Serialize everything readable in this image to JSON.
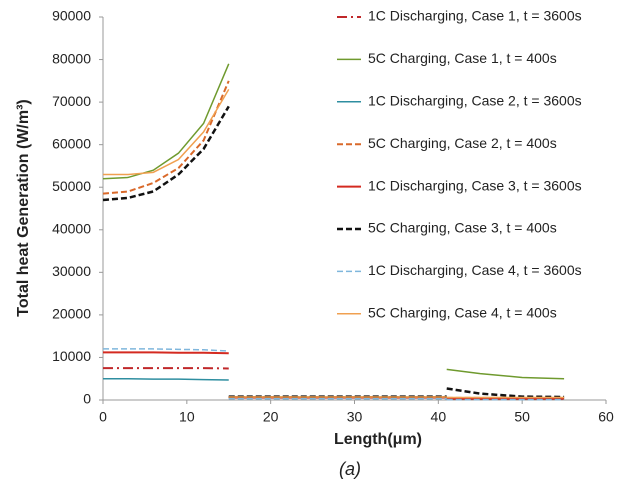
{
  "chart_data": {
    "type": "line",
    "x_label": "Length(μm)",
    "y_label": "Total heat Generation (W/m³)",
    "caption": "(a)",
    "x": [
      0,
      3,
      6,
      9,
      12,
      15,
      15,
      15,
      28,
      41,
      41,
      41,
      45,
      50,
      55
    ],
    "xlim": [
      0,
      60
    ],
    "xticks": [
      0,
      10,
      20,
      30,
      40,
      50,
      60
    ],
    "ylim": [
      0,
      90000
    ],
    "yticks": [
      0,
      10000,
      20000,
      30000,
      40000,
      50000,
      60000,
      70000,
      80000,
      90000
    ],
    "grid": false,
    "legend": "right",
    "series": [
      {
        "name": "1C Discharging, Case 1, t = 3600s",
        "color": "#c0282a",
        "dash": "dash-dot",
        "width": 2,
        "values": [
          7500,
          7500,
          7500,
          7500,
          7500,
          7400,
          null,
          700,
          700,
          700,
          null,
          300,
          300,
          300,
          300
        ]
      },
      {
        "name": "5C Charging, Case 1, t = 400s",
        "color": "#6f9a2e",
        "dash": "solid",
        "width": 1.5,
        "values": [
          52000,
          52300,
          54000,
          58000,
          65000,
          79000,
          null,
          700,
          700,
          700,
          null,
          7200,
          6200,
          5300,
          5000
        ]
      },
      {
        "name": "1C Discharging, Case 2, t = 3600s",
        "color": "#2e8ea0",
        "dash": "solid",
        "width": 1.5,
        "values": [
          5000,
          5000,
          4900,
          4900,
          4800,
          4700,
          null,
          500,
          500,
          500,
          null,
          200,
          200,
          200,
          200
        ]
      },
      {
        "name": "5C Charging, Case 2, t = 400s",
        "color": "#d9692a",
        "dash": "dash",
        "width": 2,
        "values": [
          48500,
          49000,
          51000,
          54500,
          61000,
          75000,
          null,
          600,
          600,
          600,
          null,
          500,
          500,
          500,
          500
        ]
      },
      {
        "name": "1C Discharging, Case 3, t = 3600s",
        "color": "#d42a20",
        "dash": "solid",
        "width": 2,
        "values": [
          11200,
          11200,
          11200,
          11100,
          11100,
          11000,
          null,
          600,
          600,
          600,
          null,
          300,
          300,
          300,
          300
        ]
      },
      {
        "name": "5C Charging, Case 3, t = 400s",
        "color": "#111111",
        "dash": "dash",
        "width": 2.5,
        "values": [
          47000,
          47500,
          49000,
          53000,
          59000,
          69000,
          null,
          800,
          800,
          800,
          null,
          2700,
          1500,
          800,
          700
        ]
      },
      {
        "name": "1C Discharging, Case 4, t = 3600s",
        "color": "#7fb6dc",
        "dash": "dash",
        "width": 1.5,
        "values": [
          12000,
          12000,
          12000,
          11900,
          11800,
          11500,
          null,
          300,
          300,
          300,
          null,
          100,
          100,
          100,
          100
        ]
      },
      {
        "name": "5C Charging, Case 4, t = 400s",
        "color": "#f0a050",
        "dash": "solid",
        "width": 1.5,
        "values": [
          53000,
          53000,
          53500,
          56500,
          63000,
          73000,
          null,
          700,
          700,
          700,
          null,
          600,
          600,
          600,
          600
        ]
      }
    ]
  }
}
